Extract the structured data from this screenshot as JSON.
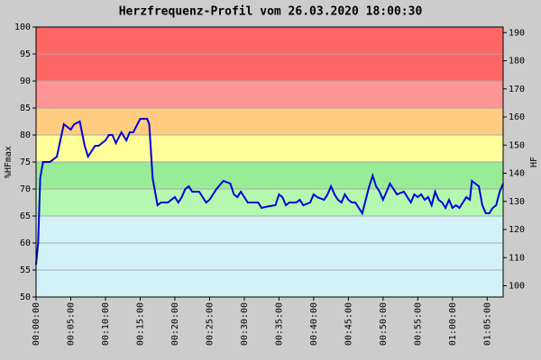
{
  "chart_data": {
    "type": "line",
    "title": "Herzfrequenz-Profil vom 26.03.2020 18:00:30",
    "y_label": "%HFmax",
    "y2_label": "HF",
    "x": [
      0,
      0.3,
      0.6,
      1,
      2,
      3,
      3.5,
      4,
      5,
      5.5,
      6.3,
      7,
      7.5,
      8,
      8.5,
      9,
      10,
      10.5,
      11,
      11.5,
      12.3,
      13,
      13.5,
      14,
      15,
      16,
      16.3,
      16.8,
      17.5,
      18,
      19,
      20,
      20.5,
      21,
      21.5,
      22,
      22.5,
      23.5,
      24.5,
      25,
      26,
      27,
      28,
      28.5,
      29,
      29.5,
      30,
      30.5,
      31,
      32,
      32.5,
      33.5,
      34.5,
      35,
      35.5,
      36,
      36.5,
      37.5,
      38,
      38.5,
      39.5,
      40,
      40.5,
      41.5,
      42,
      42.5,
      43,
      43.5,
      44,
      44.5,
      45,
      45.5,
      46,
      46.5,
      47,
      47.5,
      48,
      48.5,
      49,
      49.5,
      50,
      50.5,
      51,
      51.5,
      52,
      53,
      53.5,
      54,
      54.5,
      55,
      55.5,
      56,
      56.5,
      57,
      57.5,
      58,
      58.5,
      59,
      59.5,
      60,
      60.5,
      61,
      61.5,
      62,
      62.5,
      62.8,
      63.3,
      63.8,
      64.3,
      64.8,
      65.3,
      65.8,
      66.3,
      66.8,
      67.3
    ],
    "series": [
      {
        "name": "%HFmax",
        "color": "#0000dd",
        "values": [
          56,
          60,
          72,
          75,
          75,
          76,
          79,
          82,
          81,
          82,
          82.5,
          78,
          76,
          77,
          78,
          78,
          79,
          80,
          80,
          78.5,
          80.5,
          79,
          80.5,
          80.5,
          83,
          83,
          82,
          72,
          67,
          67.5,
          67.5,
          68.5,
          67.5,
          68.5,
          70,
          70.5,
          69.5,
          69.5,
          67.5,
          68,
          70,
          71.5,
          71,
          69,
          68.5,
          69.5,
          68.5,
          67.5,
          67.5,
          67.5,
          66.5,
          66.8,
          67,
          69,
          68.5,
          67,
          67.5,
          67.5,
          68,
          67,
          67.5,
          69,
          68.5,
          68,
          69,
          70.5,
          69,
          68,
          67.5,
          69,
          68,
          67.5,
          67.5,
          66.5,
          65.5,
          68,
          70.5,
          72.5,
          70.5,
          69.5,
          68,
          69.5,
          71,
          70,
          69,
          69.5,
          68.5,
          67.5,
          69,
          68.5,
          69,
          68,
          68.5,
          67,
          69.5,
          68,
          67.5,
          66.5,
          68,
          66.5,
          67,
          66.5,
          67.5,
          68.5,
          68,
          71.5,
          71,
          70.5,
          67,
          65.5,
          65.5,
          66.5,
          67,
          69.5,
          71
        ]
      }
    ],
    "xlim": [
      0,
      67.3
    ],
    "xticks": [
      {
        "value": 0,
        "label": "00:00:00"
      },
      {
        "value": 5,
        "label": "00:05:00"
      },
      {
        "value": 10,
        "label": "00:10:00"
      },
      {
        "value": 15,
        "label": "00:15:00"
      },
      {
        "value": 20,
        "label": "00:20:00"
      },
      {
        "value": 25,
        "label": "00:25:00"
      },
      {
        "value": 30,
        "label": "00:30:00"
      },
      {
        "value": 35,
        "label": "00:35:00"
      },
      {
        "value": 40,
        "label": "00:40:00"
      },
      {
        "value": 45,
        "label": "00:45:00"
      },
      {
        "value": 50,
        "label": "00:50:00"
      },
      {
        "value": 55,
        "label": "00:55:00"
      },
      {
        "value": 60,
        "label": "01:00:00"
      },
      {
        "value": 65,
        "label": "01:05:00"
      }
    ],
    "ylim": [
      50,
      100
    ],
    "yticks": [
      50,
      55,
      60,
      65,
      70,
      75,
      80,
      85,
      90,
      95,
      100
    ],
    "y2lim": [
      96,
      192
    ],
    "y2ticks": [
      100,
      110,
      120,
      130,
      140,
      150,
      160,
      170,
      180,
      190
    ],
    "zones": [
      {
        "from": 50,
        "to": 65,
        "color": "#d2f2f8"
      },
      {
        "from": 65,
        "to": 70,
        "color": "#b4f8b0"
      },
      {
        "from": 70,
        "to": 75,
        "color": "#98ec98"
      },
      {
        "from": 75,
        "to": 80,
        "color": "#ffff99"
      },
      {
        "from": 80,
        "to": 85,
        "color": "#ffcc80"
      },
      {
        "from": 85,
        "to": 90,
        "color": "#ff9494"
      },
      {
        "from": 90,
        "to": 100,
        "color": "#ff6666"
      }
    ],
    "grid": true
  }
}
